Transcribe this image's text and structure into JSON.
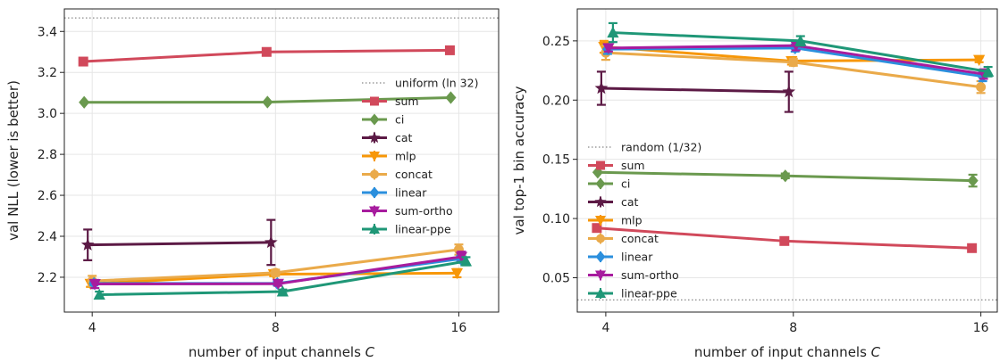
{
  "chart_data": [
    {
      "type": "line",
      "xlabel": "number of input channels C",
      "ylabel": "val NLL (lower is better)",
      "x_scale": "log2",
      "x_ticks": [
        4,
        8,
        16
      ],
      "x_tick_labels": [
        "4",
        "8",
        "16"
      ],
      "xlim": [
        3.6,
        18.6
      ],
      "ylim": [
        2.03,
        3.51
      ],
      "y_ticks": [
        2.2,
        2.4,
        2.6,
        2.8,
        3.0,
        3.2,
        3.4
      ],
      "y_tick_labels": [
        "2.2",
        "2.4",
        "2.6",
        "2.8",
        "3.0",
        "3.2",
        "3.4"
      ],
      "grid": true,
      "legend_position": "center-right",
      "reference": {
        "label": "uniform (ln 32)",
        "y": 3.466
      },
      "series": [
        {
          "name": "sum",
          "color": "#d1495b",
          "marker": "square",
          "x": [
            4,
            8,
            16
          ],
          "y": [
            3.253,
            3.3,
            3.308
          ],
          "err": [
            0,
            0,
            0
          ]
        },
        {
          "name": "ci",
          "color": "#6a994e",
          "marker": "diamond",
          "x": [
            4,
            8,
            16
          ],
          "y": [
            3.054,
            3.055,
            3.077
          ],
          "err": [
            0,
            0,
            0
          ]
        },
        {
          "name": "cat",
          "color": "#5c1a45",
          "marker": "star",
          "x": [
            4,
            8
          ],
          "y": [
            2.358,
            2.37
          ],
          "err": [
            0.075,
            0.11
          ]
        },
        {
          "name": "mlp",
          "color": "#f79708",
          "marker": "triangle-down",
          "x": [
            4,
            8,
            16
          ],
          "y": [
            2.168,
            2.215,
            2.22
          ],
          "err": [
            0.015,
            0.01,
            0.02
          ]
        },
        {
          "name": "concat",
          "color": "#eaaa4a",
          "marker": "circle",
          "x": [
            4,
            8,
            16
          ],
          "y": [
            2.182,
            2.222,
            2.335
          ],
          "err": [
            0.025,
            0.015,
            0.025
          ]
        },
        {
          "name": "linear",
          "color": "#2b8fdd",
          "marker": "diamond",
          "x": [
            4,
            8,
            16
          ],
          "y": [
            2.17,
            2.17,
            2.29
          ],
          "err": [
            0.01,
            0.01,
            0.015
          ]
        },
        {
          "name": "sum-ortho",
          "color": "#a71c9e",
          "marker": "triangle-down",
          "x": [
            4,
            8,
            16
          ],
          "y": [
            2.167,
            2.168,
            2.3
          ],
          "err": [
            0.02,
            0.01,
            0.025
          ]
        },
        {
          "name": "linear-ppe",
          "color": "#1f9777",
          "marker": "triangle-up",
          "x": [
            4,
            8,
            16
          ],
          "y": [
            2.115,
            2.13,
            2.278
          ],
          "err": [
            0.015,
            0.01,
            0.02
          ]
        }
      ]
    },
    {
      "type": "line",
      "xlabel": "number of input channels C",
      "ylabel": "val top-1 bin accuracy",
      "x_scale": "log2",
      "x_ticks": [
        4,
        8,
        16
      ],
      "x_tick_labels": [
        "4",
        "8",
        "16"
      ],
      "xlim": [
        3.6,
        17.0
      ],
      "ylim": [
        0.021,
        0.277
      ],
      "y_ticks": [
        0.05,
        0.1,
        0.15,
        0.2,
        0.25
      ],
      "y_tick_labels": [
        "0.05",
        "0.10",
        "0.15",
        "0.20",
        "0.25"
      ],
      "grid": true,
      "legend_position": "lower-left",
      "reference": {
        "label": "random (1/32)",
        "y": 0.03125
      },
      "series": [
        {
          "name": "sum",
          "color": "#d1495b",
          "marker": "square",
          "x": [
            4,
            8,
            16
          ],
          "y": [
            0.092,
            0.081,
            0.075
          ],
          "err": [
            0,
            0,
            0
          ]
        },
        {
          "name": "ci",
          "color": "#6a994e",
          "marker": "diamond",
          "x": [
            4,
            8,
            16
          ],
          "y": [
            0.139,
            0.136,
            0.132
          ],
          "err": [
            0,
            0.002,
            0.005
          ]
        },
        {
          "name": "cat",
          "color": "#5c1a45",
          "marker": "star",
          "x": [
            4,
            8
          ],
          "y": [
            0.21,
            0.207
          ],
          "err": [
            0.014,
            0.017
          ]
        },
        {
          "name": "mlp",
          "color": "#f79708",
          "marker": "triangle-down",
          "x": [
            4,
            8,
            16
          ],
          "y": [
            0.245,
            0.233,
            0.234
          ],
          "err": [
            0.005,
            0.003,
            0.002
          ]
        },
        {
          "name": "concat",
          "color": "#eaaa4a",
          "marker": "circle",
          "x": [
            4,
            8,
            16
          ],
          "y": [
            0.24,
            0.232,
            0.211
          ],
          "err": [
            0.006,
            0.003,
            0.005
          ]
        },
        {
          "name": "linear",
          "color": "#2b8fdd",
          "marker": "diamond",
          "x": [
            4,
            8,
            16
          ],
          "y": [
            0.243,
            0.244,
            0.22
          ],
          "err": [
            0.004,
            0.003,
            0.004
          ]
        },
        {
          "name": "sum-ortho",
          "color": "#a71c9e",
          "marker": "triangle-down",
          "x": [
            4,
            8,
            16
          ],
          "y": [
            0.244,
            0.246,
            0.222
          ],
          "err": [
            0.003,
            0.004,
            0.004
          ]
        },
        {
          "name": "linear-ppe",
          "color": "#1f9777",
          "marker": "triangle-up",
          "x": [
            4,
            8,
            16
          ],
          "y": [
            0.257,
            0.25,
            0.224
          ],
          "err": [
            0.008,
            0.004,
            0.004
          ]
        }
      ]
    }
  ]
}
